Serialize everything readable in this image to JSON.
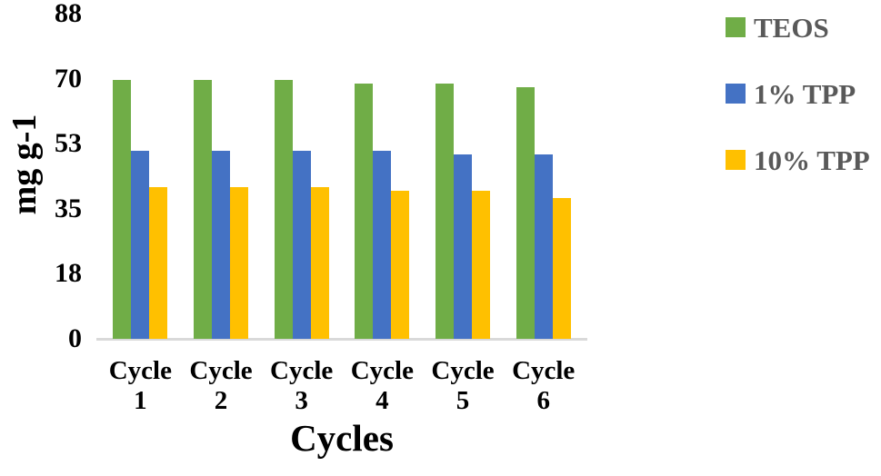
{
  "chart_data": {
    "type": "bar",
    "title": "",
    "xlabel": "Cycles",
    "ylabel": "mg g-1",
    "categories": [
      "Cycle 1",
      "Cycle 2",
      "Cycle 3",
      "Cycle 4",
      "Cycle 5",
      "Cycle 6"
    ],
    "series": [
      {
        "name": "TEOS",
        "color": "#70AD47",
        "values": [
          70,
          70,
          70,
          69,
          69,
          68
        ]
      },
      {
        "name": "1% TPP",
        "color": "#4472C4",
        "values": [
          51,
          51,
          51,
          51,
          50,
          50
        ]
      },
      {
        "name": "10% TPP",
        "color": "#FFC000",
        "values": [
          41,
          41,
          41,
          40,
          40,
          38
        ]
      }
    ],
    "yticks": [
      0,
      18,
      35,
      53,
      70,
      88
    ],
    "ylim": [
      0,
      88
    ],
    "grid": false,
    "legend_position": "right",
    "colors": {
      "axis_line": "#D9D9D9",
      "axis_text": "#000000",
      "legend_text": "#595959"
    }
  }
}
